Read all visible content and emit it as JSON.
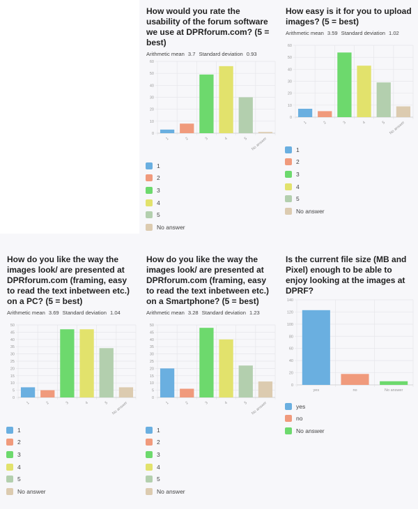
{
  "chart_data": [
    {
      "id": "c1",
      "type": "bar",
      "title": "How would you rate the usability of the forum software we use at DPRforum.com? (5 = best)",
      "stats": {
        "mean_label": "Arithmetic mean",
        "mean": "3.7",
        "sd_label": "Standard deviation",
        "sd": "0.93"
      },
      "categories": [
        "1",
        "2",
        "3",
        "4",
        "5",
        "No answer"
      ],
      "values": [
        3,
        8,
        49,
        56,
        30,
        1
      ],
      "ylim": [
        0,
        60
      ],
      "ystep": 10,
      "colors": [
        "#6aafe0",
        "#f09a7c",
        "#6dd96d",
        "#e2e26c",
        "#b3cfae",
        "#dccbb0"
      ],
      "grid": true,
      "legend": "bottom",
      "rotated_labels": true
    },
    {
      "id": "c2",
      "type": "bar",
      "title": "How easy is it for you to upload images? (5 = best)",
      "stats": {
        "mean_label": "Arithmetic mean",
        "mean": "3.59",
        "sd_label": "Standard deviation",
        "sd": "1.02"
      },
      "categories": [
        "1",
        "2",
        "3",
        "4",
        "5",
        "No answer"
      ],
      "values": [
        7,
        5,
        54,
        43,
        29,
        9
      ],
      "ylim": [
        0,
        60
      ],
      "ystep": 10,
      "colors": [
        "#6aafe0",
        "#f09a7c",
        "#6dd96d",
        "#e2e26c",
        "#b3cfae",
        "#dccbb0"
      ],
      "grid": true,
      "legend": "bottom",
      "rotated_labels": true
    },
    {
      "id": "c3",
      "type": "bar",
      "title": "How do you like the way the images look/ are presented at DPRforum.com (framing, easy to read the text inbetween etc.) on a PC? (5 = best)",
      "stats": {
        "mean_label": "Arithmetic mean",
        "mean": "3.69",
        "sd_label": "Standard deviation",
        "sd": "1.04"
      },
      "categories": [
        "1",
        "2",
        "3",
        "4",
        "5",
        "No answer"
      ],
      "values": [
        7,
        5,
        47,
        47,
        34,
        7
      ],
      "ylim": [
        0,
        50
      ],
      "ystep": 5,
      "colors": [
        "#6aafe0",
        "#f09a7c",
        "#6dd96d",
        "#e2e26c",
        "#b3cfae",
        "#dccbb0"
      ],
      "grid": true,
      "legend": "bottom",
      "rotated_labels": true
    },
    {
      "id": "c4",
      "type": "bar",
      "title": "How do you like the way the images look/ are presented at DPRforum.com (framing, easy to read the text inbetween etc.) on a Smartphone? (5 = best)",
      "stats": {
        "mean_label": "Arithmetic mean",
        "mean": "3.28",
        "sd_label": "Standard deviation",
        "sd": "1.23"
      },
      "categories": [
        "1",
        "2",
        "3",
        "4",
        "5",
        "No answer"
      ],
      "values": [
        20,
        6,
        48,
        40,
        22,
        11
      ],
      "ylim": [
        0,
        50
      ],
      "ystep": 5,
      "colors": [
        "#6aafe0",
        "#f09a7c",
        "#6dd96d",
        "#e2e26c",
        "#b3cfae",
        "#dccbb0"
      ],
      "grid": true,
      "legend": "bottom",
      "rotated_labels": true
    },
    {
      "id": "c5",
      "type": "bar",
      "title": "Is the current file size (MB and Pixel) enough to be able to enjoy looking at the images at DPRF?",
      "categories": [
        "yes",
        "no",
        "No answer"
      ],
      "values": [
        123,
        18,
        6
      ],
      "ylim": [
        0,
        140
      ],
      "ystep": 20,
      "colors": [
        "#6aafe0",
        "#f09a7c",
        "#6dd96d"
      ],
      "grid": true,
      "legend": "bottom",
      "rotated_labels": false
    }
  ]
}
